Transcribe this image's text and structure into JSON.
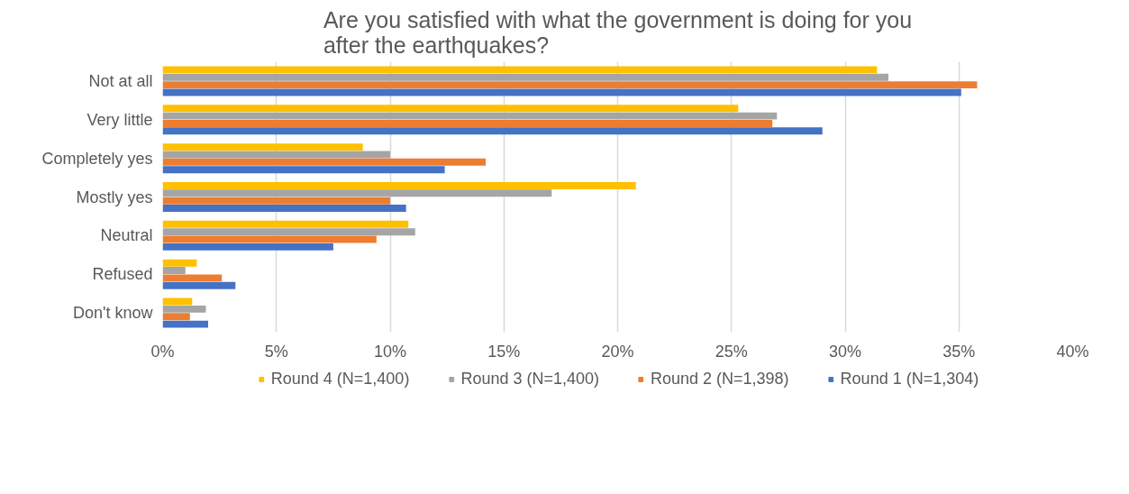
{
  "chart_data": {
    "type": "bar",
    "orientation": "horizontal",
    "title": "Are you satisfied with what the government is doing for you after the earthquakes?",
    "categories": [
      "Not at all",
      "Very little",
      "Completely yes",
      "Mostly yes",
      "Neutral",
      "Refused",
      "Don't know"
    ],
    "series": [
      {
        "name": "Round 4 (N=1,400)",
        "color": "#ffc000",
        "values": [
          31.4,
          25.3,
          8.8,
          20.8,
          10.8,
          1.5,
          1.3
        ]
      },
      {
        "name": "Round 3 (N=1,400)",
        "color": "#a5a5a5",
        "values": [
          31.9,
          27.0,
          10.0,
          17.1,
          11.1,
          1.0,
          1.9
        ]
      },
      {
        "name": "Round 2 (N=1,398)",
        "color": "#ed7d31",
        "values": [
          35.8,
          26.8,
          14.2,
          10.0,
          9.4,
          2.6,
          1.2
        ]
      },
      {
        "name": "Round 1 (N=1,304)",
        "color": "#4472c4",
        "values": [
          35.1,
          29.0,
          12.4,
          10.7,
          7.5,
          3.2,
          2.0
        ]
      }
    ],
    "xlim": [
      0,
      40
    ],
    "xticks": [
      {
        "value": 0,
        "label": "0%"
      },
      {
        "value": 5,
        "label": "5%"
      },
      {
        "value": 10,
        "label": "10%"
      },
      {
        "value": 15,
        "label": "15%"
      },
      {
        "value": 20,
        "label": "20%"
      },
      {
        "value": 25,
        "label": "25%"
      },
      {
        "value": 30,
        "label": "30%"
      },
      {
        "value": 35,
        "label": "35%"
      },
      {
        "value": 40,
        "label": "40%"
      }
    ],
    "grid": "x",
    "legend": "bottom"
  }
}
